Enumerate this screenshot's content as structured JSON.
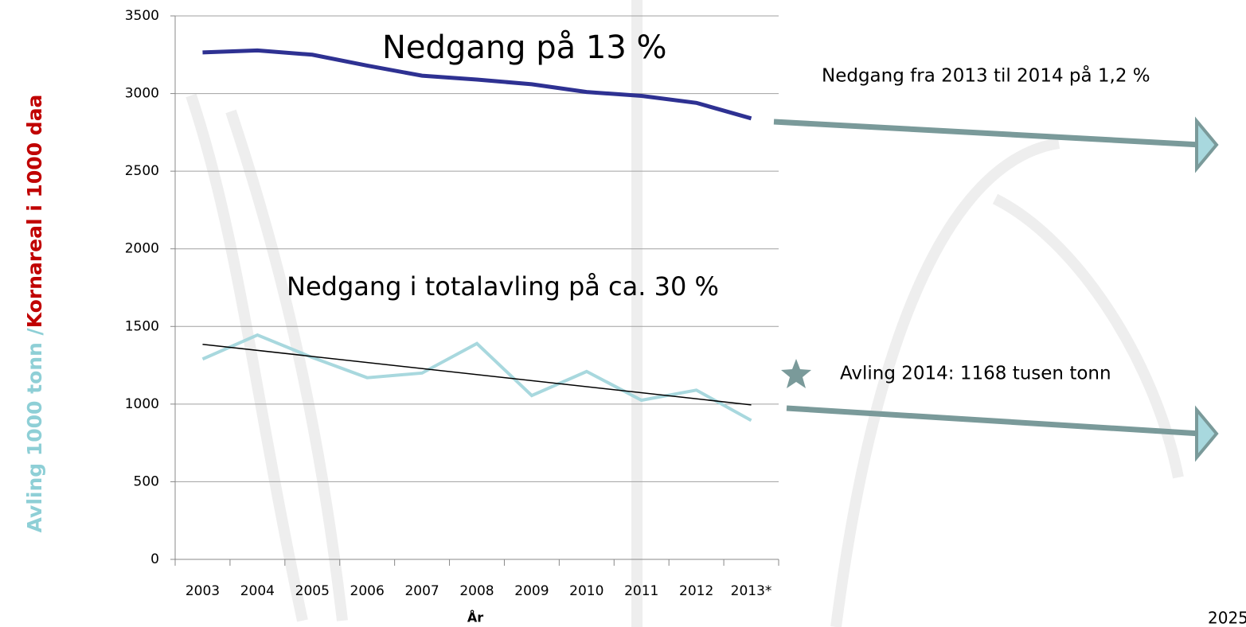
{
  "chart_data": {
    "type": "line",
    "y_label_parts": [
      "Avling 1000 tonn /",
      "Kornareal i 1000 daa"
    ],
    "y_label_colors": [
      "#8ecfd6",
      "#c00000"
    ],
    "x_label": "År",
    "categories": [
      "2003",
      "2004",
      "2005",
      "2006",
      "2007",
      "2008",
      "2009",
      "2010",
      "2011",
      "2012",
      "2013*"
    ],
    "series": [
      {
        "name": "Kornareal",
        "color": "#2e3192",
        "values": [
          3265,
          3278,
          3250,
          3180,
          3115,
          3090,
          3060,
          3010,
          2985,
          2940,
          2840
        ]
      },
      {
        "name": "Avling",
        "color": "#a8d8de",
        "values": [
          1290,
          1445,
          1300,
          1170,
          1200,
          1390,
          1055,
          1210,
          1025,
          1090,
          895
        ]
      }
    ],
    "trendline": {
      "color": "#000000",
      "values": [
        1385,
        995
      ]
    },
    "ylim": [
      0,
      3500
    ],
    "yticks": [
      0,
      500,
      1000,
      1500,
      2000,
      2500,
      3000,
      3500
    ],
    "grid": true,
    "annotations": [
      "Nedgang på 13 %",
      "Nedgang i totalavling på  ca. 30 %",
      "Nedgang fra 2013 til 2014 på 1,2 %",
      "Avling 2014: 1168 tusen tonn",
      "2025"
    ]
  }
}
